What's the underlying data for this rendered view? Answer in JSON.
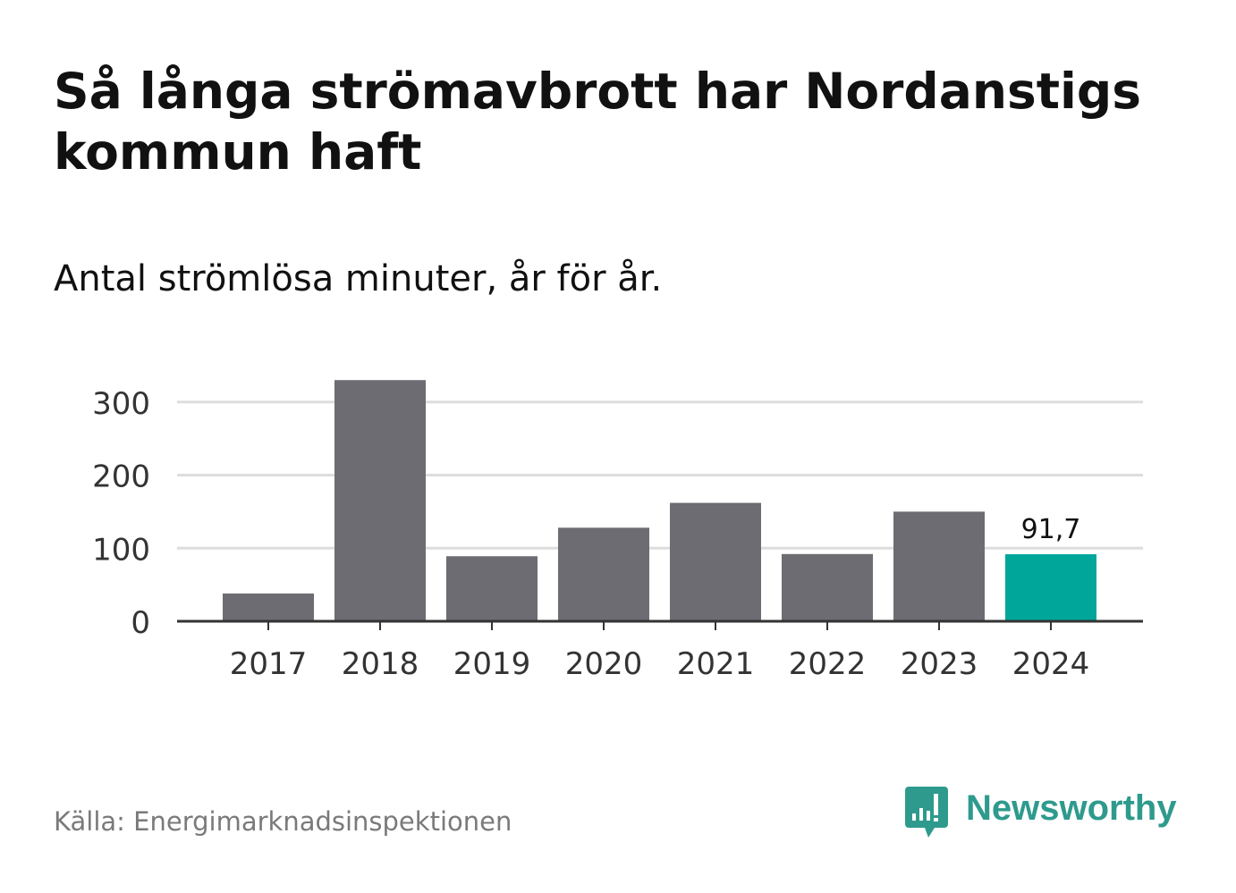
{
  "title": "Så långa strömavbrott har Nordanstigs kommun haft",
  "subtitle": "Antal strömlösa minuter, år för år.",
  "source": "Källa: Energimarknadsinspektionen",
  "brand": {
    "name": "Newsworthy",
    "icon": "newsworthy-bar-chart-icon"
  },
  "colors": {
    "bar": "#6d6c72",
    "highlight": "#00a69a",
    "gridline": "#dddddd",
    "axis": "#333333",
    "tick_text": "#333333",
    "brand": "#2e9a8d",
    "source_text": "#7a7a7a"
  },
  "chart_data": {
    "type": "bar",
    "categories": [
      "2017",
      "2018",
      "2019",
      "2020",
      "2021",
      "2022",
      "2023",
      "2024"
    ],
    "values": [
      38,
      330,
      89,
      128,
      162,
      92,
      150,
      91.7
    ],
    "highlight_index": 7,
    "data_labels": [
      {
        "index": 7,
        "text": "91,7"
      }
    ],
    "yticks": [
      0,
      100,
      200,
      300
    ],
    "ylim": [
      0,
      330
    ],
    "grid": true,
    "legend": "none",
    "title": "Så långa strömavbrott har Nordanstigs kommun haft",
    "subtitle": "Antal strömlösa minuter, år för år.",
    "xlabel": "",
    "ylabel": ""
  }
}
